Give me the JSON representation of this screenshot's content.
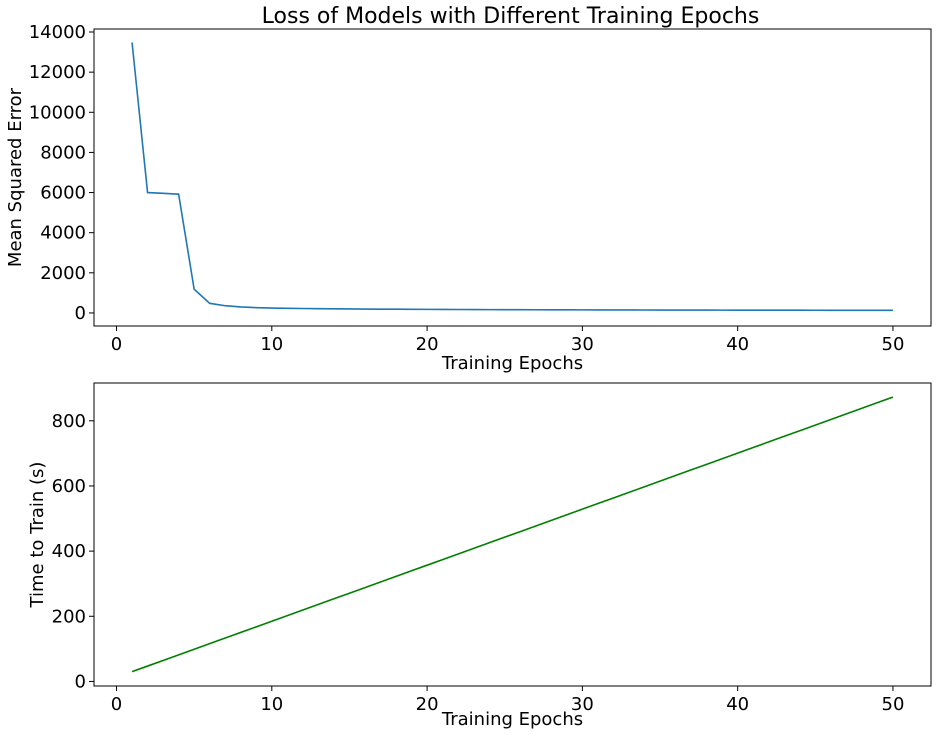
{
  "chart_data": [
    {
      "type": "line",
      "title": "Loss of Models with Different Training Epochs",
      "xlabel": "Training Epochs",
      "ylabel": "Mean Squared Error",
      "xlim": [
        -1.45,
        52.45
      ],
      "ylim": [
        -650,
        14150
      ],
      "xticks": [
        0,
        10,
        20,
        30,
        40,
        50
      ],
      "yticks": [
        0,
        2000,
        4000,
        6000,
        8000,
        10000,
        12000,
        14000
      ],
      "grid": false,
      "color": "#1f77b4",
      "series": [
        {
          "x": [
            1,
            2,
            3,
            4,
            5,
            6,
            7,
            8,
            9,
            10,
            11,
            12,
            13,
            14,
            15,
            16,
            17,
            18,
            19,
            20,
            21,
            22,
            23,
            24,
            25,
            26,
            27,
            28,
            29,
            30,
            31,
            32,
            33,
            34,
            35,
            36,
            37,
            38,
            39,
            40,
            41,
            42,
            43,
            44,
            45,
            46,
            47,
            48,
            49,
            50
          ],
          "values": [
            13480,
            6000,
            5960,
            5920,
            1180,
            480,
            360,
            300,
            265,
            245,
            232,
            222,
            214,
            206,
            200,
            195,
            190,
            186,
            182,
            178,
            175,
            172,
            169,
            166,
            164,
            162,
            160,
            158,
            156,
            154,
            152,
            150,
            149,
            148,
            146,
            145,
            144,
            142,
            141,
            140,
            139,
            138,
            137,
            136,
            135,
            134,
            133,
            132,
            131,
            130
          ]
        }
      ]
    },
    {
      "type": "line",
      "title": "",
      "xlabel": "Training Epochs",
      "ylabel": "Time to Train (s)",
      "xlim": [
        -1.45,
        52.45
      ],
      "ylim": [
        -14,
        916
      ],
      "xticks": [
        0,
        10,
        20,
        30,
        40,
        50
      ],
      "yticks": [
        0,
        200,
        400,
        600,
        800
      ],
      "grid": false,
      "color": "#008000",
      "series": [
        {
          "x": [
            1,
            2,
            3,
            4,
            5,
            6,
            7,
            8,
            9,
            10,
            11,
            12,
            13,
            14,
            15,
            16,
            17,
            18,
            19,
            20,
            21,
            22,
            23,
            24,
            25,
            26,
            27,
            28,
            29,
            30,
            31,
            32,
            33,
            34,
            35,
            36,
            37,
            38,
            39,
            40,
            41,
            42,
            43,
            44,
            45,
            46,
            47,
            48,
            49,
            50
          ],
          "values": [
            30,
            47.2,
            64.4,
            81.6,
            98.8,
            116,
            133.2,
            150.4,
            167.6,
            184.8,
            202,
            219.2,
            236.4,
            253.6,
            270.8,
            288,
            305.2,
            322.4,
            339.6,
            356.8,
            374,
            391.2,
            408.4,
            425.6,
            442.8,
            460,
            477.2,
            494.4,
            511.6,
            528.8,
            546,
            563.2,
            580.4,
            597.6,
            614.8,
            632,
            649.2,
            666.4,
            683.6,
            700.8,
            718,
            735.2,
            752.4,
            769.6,
            786.8,
            804,
            821.2,
            838.4,
            855.6,
            872.8
          ]
        }
      ]
    }
  ]
}
